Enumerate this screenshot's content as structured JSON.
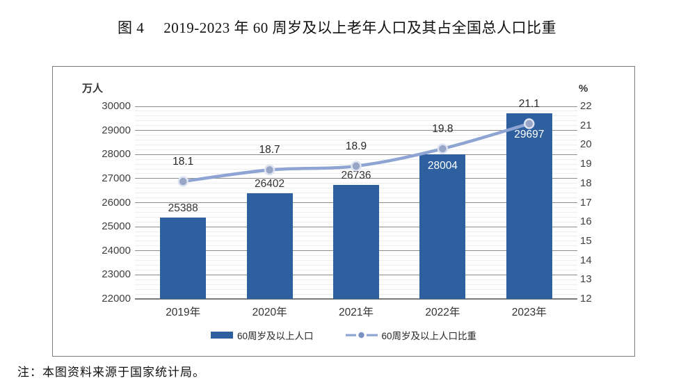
{
  "page": {
    "figure_label": "图 4",
    "figure_title": "2019-2023 年 60 周岁及以上老年人口及其占全国总人口比重",
    "note": "注：本图资料来源于国家统计局。"
  },
  "chart_data": {
    "type": "bar",
    "combo": "bar+line",
    "title": "2019-2023 年 60 周岁及以上老年人口及其占全国总人口比重",
    "categories": [
      "2019年",
      "2020年",
      "2021年",
      "2022年",
      "2023年"
    ],
    "series": [
      {
        "name": "60周岁及以上人口",
        "type": "bar",
        "axis": "left",
        "values": [
          25388,
          26402,
          26736,
          28004,
          29697
        ],
        "value_labels": [
          "25388",
          "26402",
          "26736",
          "28004",
          "29697"
        ],
        "label_inside": [
          false,
          false,
          false,
          true,
          true
        ],
        "label_offset": [
          -22,
          -22,
          -22,
          8,
          22
        ],
        "color": "#2e609f"
      },
      {
        "name": "60周岁及以上人口比重",
        "type": "line",
        "axis": "right",
        "values": [
          18.1,
          18.7,
          18.9,
          19.8,
          21.1
        ],
        "value_labels": [
          "18.1",
          "18.7",
          "18.9",
          "19.8",
          "21.1"
        ],
        "color": "#8ea4d2",
        "marker_fill": "#97a5c6",
        "marker_stroke": "#dde3f0",
        "legend_dot": "#7d92c4"
      }
    ],
    "left_axis": {
      "unit": "万人",
      "min": 22000,
      "max": 30000,
      "step": 1000
    },
    "right_axis": {
      "unit": "%",
      "min": 12,
      "max": 22,
      "step": 1
    },
    "grid": true,
    "legend_position": "bottom"
  }
}
